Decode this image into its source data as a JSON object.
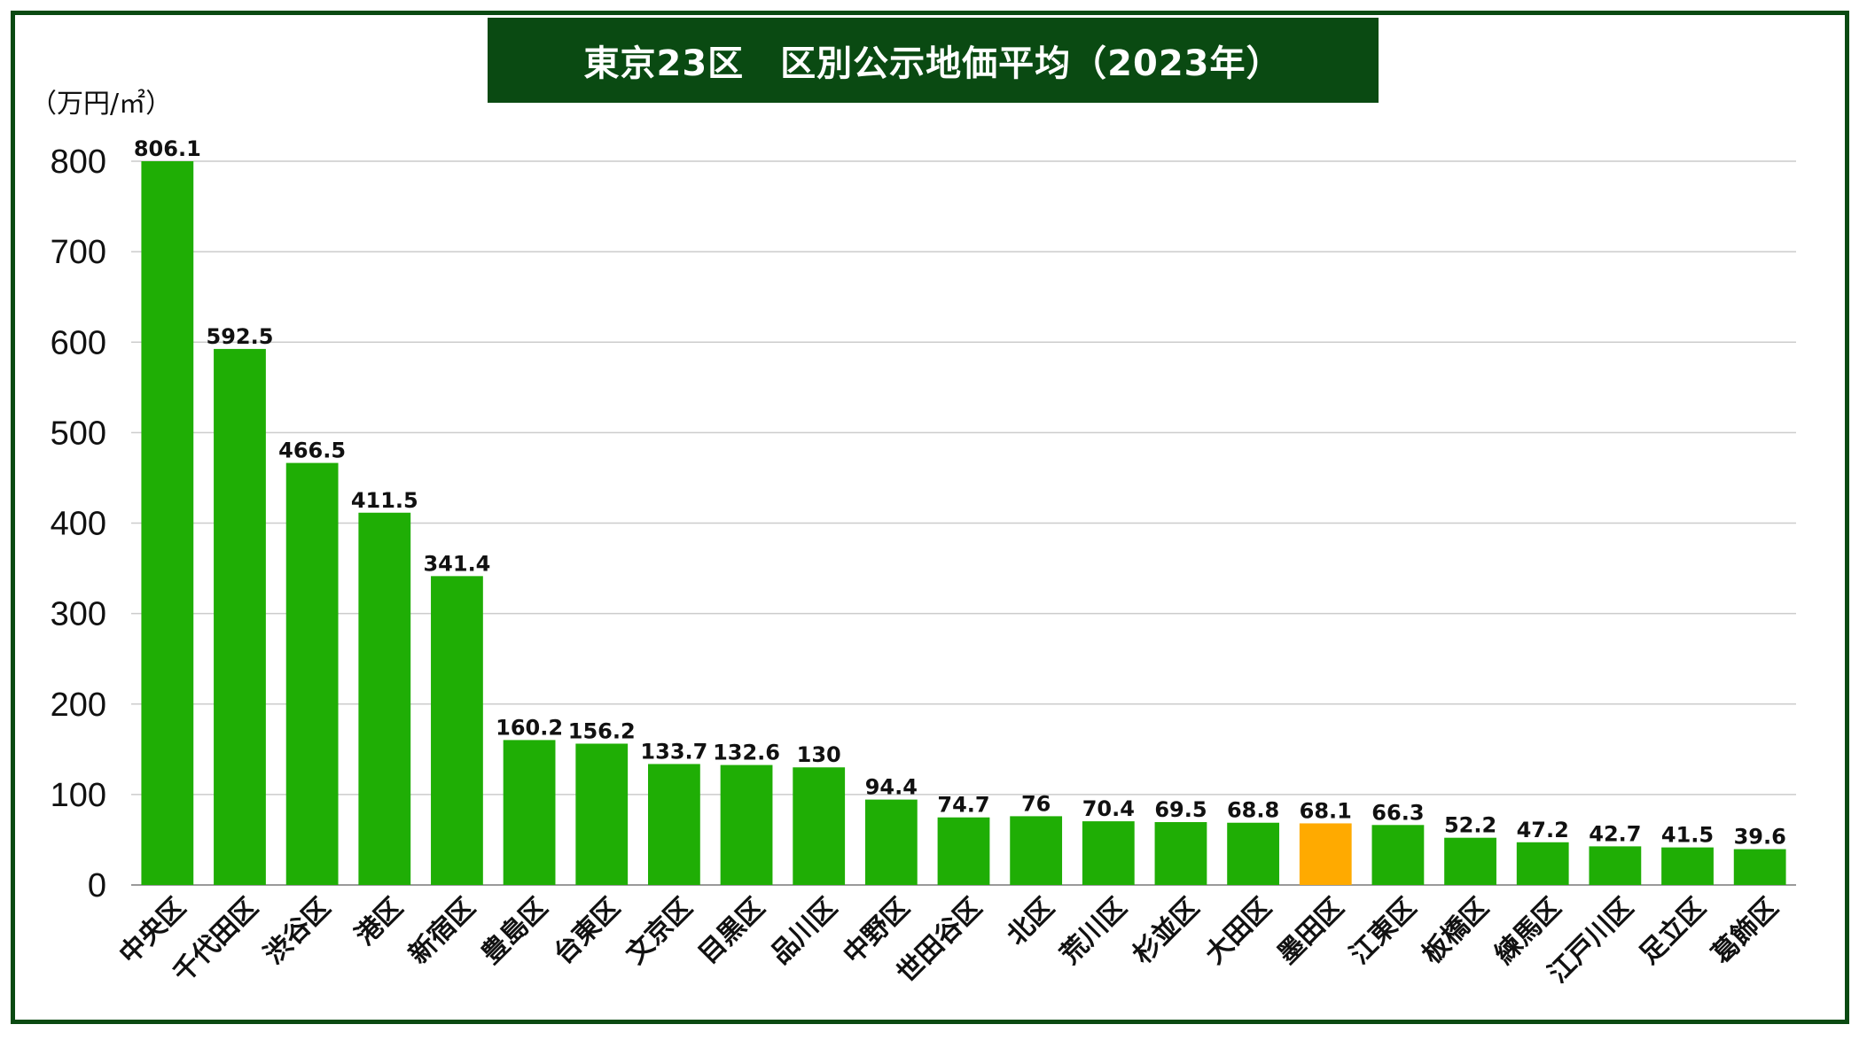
{
  "chart_data": {
    "type": "bar",
    "title": "東京23区　区別公示地価平均（2023年）",
    "unit_label": "（万円/㎡）",
    "ylim": [
      0,
      800
    ],
    "yticks": [
      0,
      100,
      200,
      300,
      400,
      500,
      600,
      700,
      800
    ],
    "grid": true,
    "categories": [
      "中央区",
      "千代田区",
      "渋谷区",
      "港区",
      "新宿区",
      "豊島区",
      "台東区",
      "文京区",
      "目黒区",
      "品川区",
      "中野区",
      "世田谷区",
      "北区",
      "荒川区",
      "杉並区",
      "大田区",
      "墨田区",
      "江東区",
      "板橋区",
      "練馬区",
      "江戸川区",
      "足立区",
      "葛飾区"
    ],
    "values": [
      806.1,
      592.5,
      466.5,
      411.5,
      341.4,
      160.2,
      156.2,
      133.7,
      132.6,
      130,
      94.4,
      74.7,
      76,
      70.4,
      69.5,
      68.8,
      68.1,
      66.3,
      52.2,
      47.2,
      42.7,
      41.5,
      39.6
    ],
    "value_labels": [
      "806.1",
      "592.5",
      "466.5",
      "411.5",
      "341.4",
      "160.2",
      "156.2",
      "133.7",
      "132.6",
      "130",
      "94.4",
      "74.7",
      "76",
      "70.4",
      "69.5",
      "68.8",
      "68.1",
      "66.3",
      "52.2",
      "47.2",
      "42.7",
      "41.5",
      "39.6"
    ],
    "highlight_category": "墨田区",
    "colors": {
      "bar": "#1fae05",
      "highlight": "#ffaa00",
      "grid": "#cccccc",
      "frame": "#0a4a12"
    }
  }
}
